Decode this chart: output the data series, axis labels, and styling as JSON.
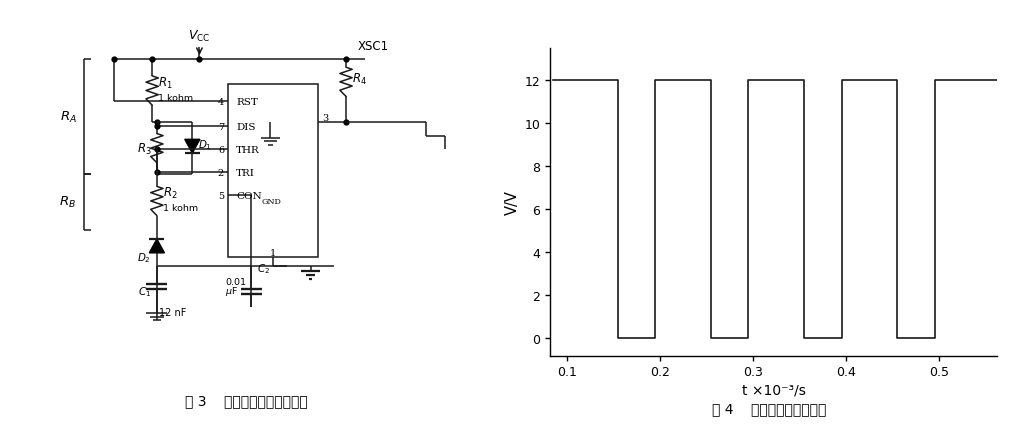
{
  "fig_width": 10.28,
  "fig_height": 4.27,
  "dpi": 100,
  "bg_color": "#ffffff",
  "plot_ylabel": "V/V",
  "plot_xlabel": "t ×10⁻³/s",
  "plot_yticks": [
    0,
    2,
    4,
    6,
    8,
    10,
    12
  ],
  "plot_xticks": [
    0.1,
    0.2,
    0.3,
    0.4,
    0.5
  ],
  "plot_xlim": [
    0.082,
    0.562
  ],
  "plot_ylim": [
    -0.8,
    13.5
  ],
  "high_val": 12,
  "low_val": 0,
  "line_color": "#1a1a1a",
  "caption_left": "图 3    脉冲波形发生器原理图",
  "caption_right": "图 4    设计电路的仿真结果"
}
